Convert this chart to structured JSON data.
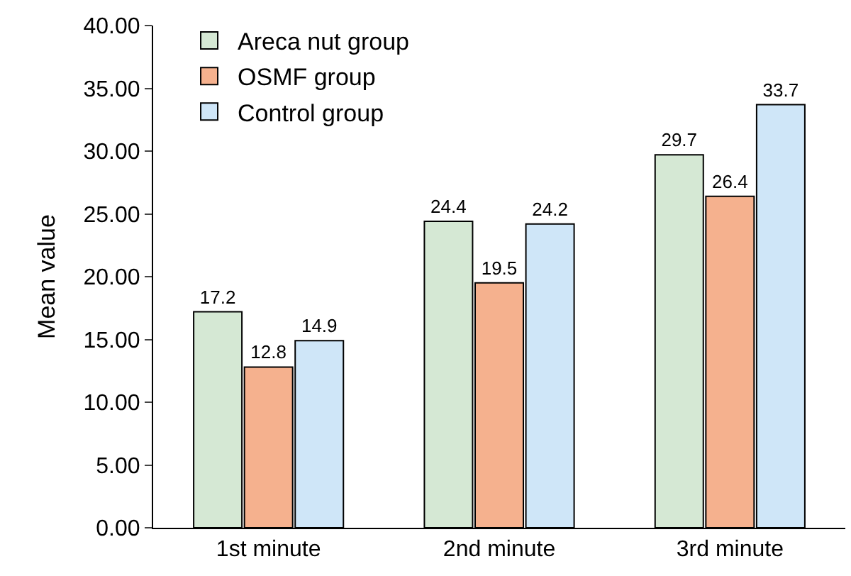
{
  "chart_data": {
    "type": "bar",
    "ylabel": "Mean value",
    "categories": [
      "1st minute",
      "2nd minute",
      "3rd minute"
    ],
    "series": [
      {
        "name": "Areca nut group",
        "color": "#d5e8d4",
        "values": [
          17.2,
          24.4,
          29.7
        ]
      },
      {
        "name": "OSMF group",
        "color": "#f5b18e",
        "values": [
          12.8,
          19.5,
          26.4
        ]
      },
      {
        "name": "Control group",
        "color": "#cfe6f8",
        "values": [
          14.9,
          24.2,
          33.7
        ]
      }
    ],
    "ylim": [
      0,
      40
    ],
    "yticks": [
      {
        "value": 0,
        "label": "0.00"
      },
      {
        "value": 5,
        "label": "5.00"
      },
      {
        "value": 10,
        "label": "10.00"
      },
      {
        "value": 15,
        "label": "15.00"
      },
      {
        "value": 20,
        "label": "20.00"
      },
      {
        "value": 25,
        "label": "25.00"
      },
      {
        "value": 30,
        "label": "30.00"
      },
      {
        "value": 35,
        "label": "35.00"
      },
      {
        "value": 40,
        "label": "40.00"
      }
    ],
    "data_labels": true,
    "legend": "top left"
  }
}
